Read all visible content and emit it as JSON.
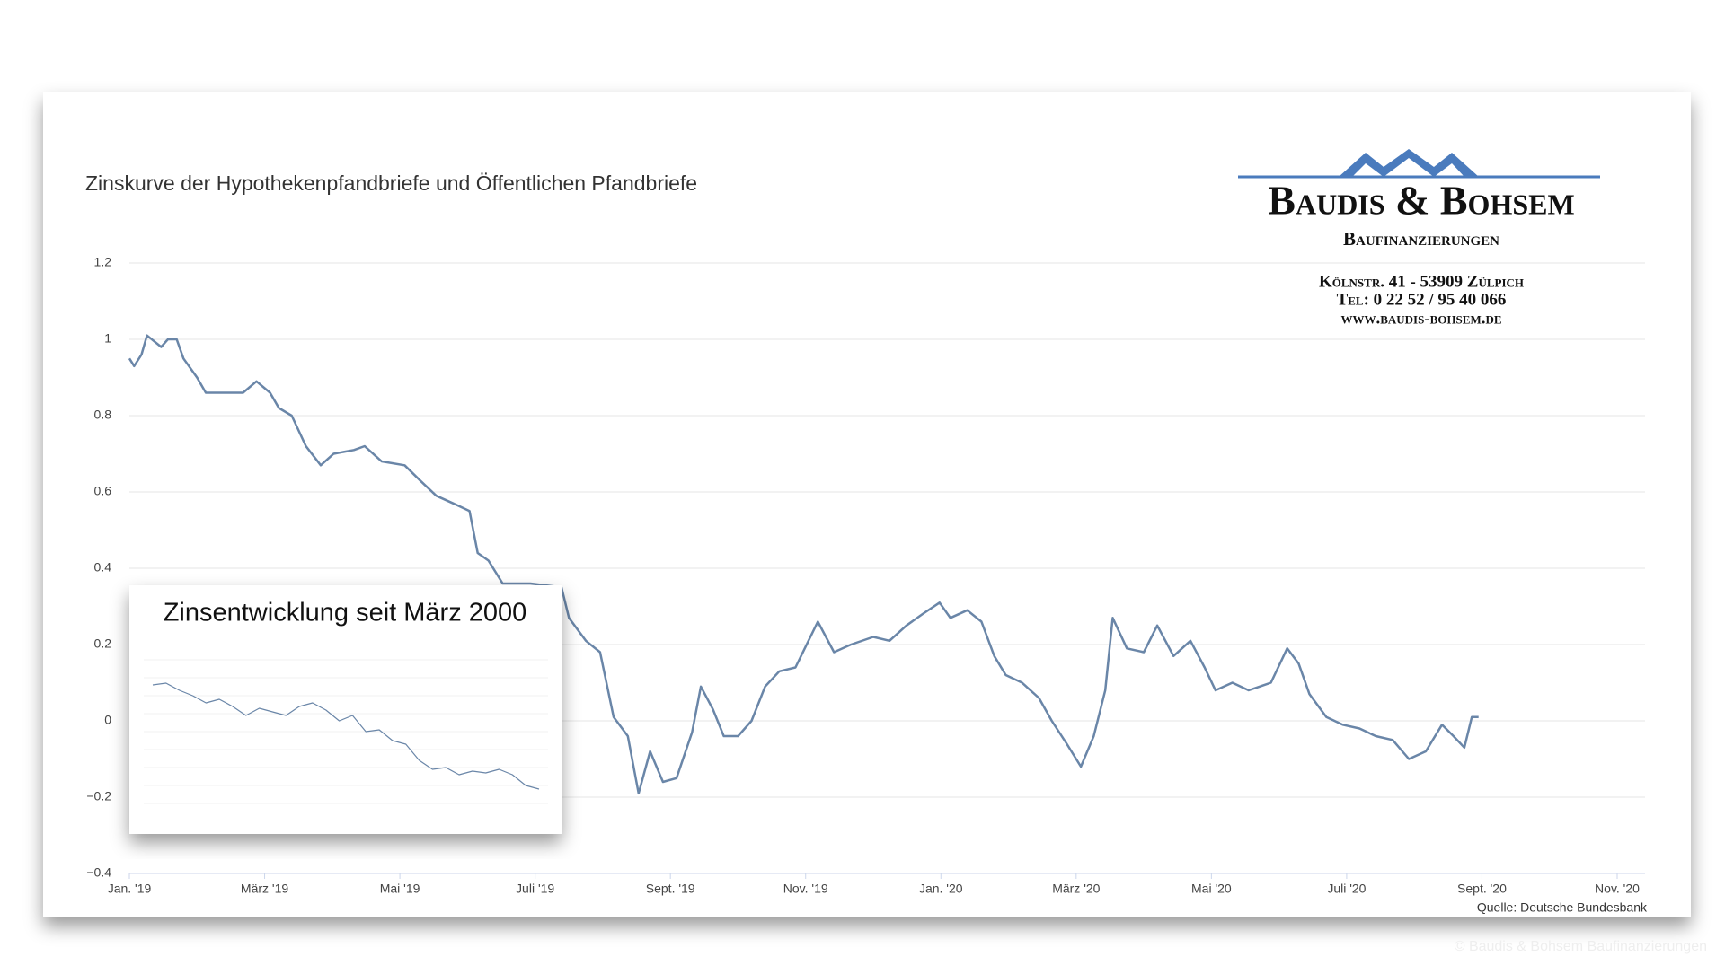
{
  "chart_data": [
    {
      "type": "line",
      "title": "Zinskurve der Hypothekenpfandbriefe und Öffentlichen Pfandbriefe",
      "source": "Quelle: Deutsche Bundesbank",
      "color": "#6a86a8",
      "grid": true,
      "x": [
        0,
        0.07,
        0.18,
        0.26,
        0.47,
        0.57,
        0.7,
        0.8,
        1.0,
        1.13,
        1.36,
        1.68,
        1.88,
        2.08,
        2.21,
        2.4,
        2.61,
        2.83,
        3.02,
        3.32,
        3.48,
        3.73,
        4.07,
        4.3,
        4.54,
        4.79,
        5.03,
        5.15,
        5.31,
        5.52,
        5.93,
        6.39,
        6.5,
        6.75,
        6.96,
        7.16,
        7.37,
        7.53,
        7.7,
        7.89,
        8.09,
        8.32,
        8.45,
        8.63,
        8.79,
        9.0,
        9.2,
        9.4,
        9.61,
        9.85,
        10.18,
        10.42,
        10.67,
        11.0,
        11.24,
        11.49,
        11.73,
        11.98,
        12.14,
        12.39,
        12.6,
        12.79,
        12.96,
        13.2,
        13.45,
        13.64,
        13.86,
        14.07,
        14.26,
        14.43,
        14.54,
        14.75,
        15.0,
        15.2,
        15.44,
        15.69,
        15.9,
        16.06,
        16.31,
        16.55,
        16.88,
        17.12,
        17.29,
        17.45,
        17.7,
        17.94,
        18.19,
        18.43,
        18.68,
        18.92,
        19.17,
        19.41,
        19.58,
        19.74,
        19.85,
        19.95
      ],
      "values": [
        0.95,
        0.93,
        0.96,
        1.01,
        0.98,
        1.0,
        1.0,
        0.95,
        0.9,
        0.86,
        0.86,
        0.86,
        0.89,
        0.86,
        0.82,
        0.8,
        0.72,
        0.67,
        0.7,
        0.71,
        0.72,
        0.68,
        0.67,
        0.63,
        0.59,
        0.57,
        0.55,
        0.44,
        0.42,
        0.36,
        0.36,
        0.35,
        0.27,
        0.21,
        0.18,
        0.01,
        -0.04,
        -0.19,
        -0.08,
        -0.16,
        -0.15,
        -0.03,
        0.09,
        0.03,
        -0.04,
        -0.04,
        0.0,
        0.09,
        0.13,
        0.14,
        0.26,
        0.18,
        0.2,
        0.22,
        0.21,
        0.25,
        0.28,
        0.31,
        0.27,
        0.29,
        0.26,
        0.17,
        0.12,
        0.1,
        0.06,
        0.0,
        -0.06,
        -0.12,
        -0.04,
        0.08,
        0.27,
        0.19,
        0.18,
        0.25,
        0.17,
        0.21,
        0.14,
        0.08,
        0.1,
        0.08,
        0.1,
        0.19,
        0.15,
        0.07,
        0.01,
        -0.01,
        -0.02,
        -0.04,
        -0.05,
        -0.1,
        -0.08,
        -0.01,
        -0.04,
        -0.07,
        0.01,
        0.01
      ],
      "xlim": [
        0,
        22
      ],
      "xticks": [
        {
          "value": 0,
          "label": "Jan. '19"
        },
        {
          "value": 2,
          "label": "März '19"
        },
        {
          "value": 4,
          "label": "Mai '19"
        },
        {
          "value": 6,
          "label": "Juli '19"
        },
        {
          "value": 8,
          "label": "Sept. '19"
        },
        {
          "value": 10,
          "label": "Nov. '19"
        },
        {
          "value": 12,
          "label": "Jan. '20"
        },
        {
          "value": 14,
          "label": "März '20"
        },
        {
          "value": 16,
          "label": "Mai '20"
        },
        {
          "value": 18,
          "label": "Juli '20"
        },
        {
          "value": 20,
          "label": "Sept. '20"
        },
        {
          "value": 22,
          "label": "Nov. '20"
        }
      ],
      "ylim": [
        -0.4,
        1.2
      ],
      "yticks": [
        {
          "value": -0.4,
          "label": "−0.4"
        },
        {
          "value": -0.2,
          "label": "−0.2"
        },
        0,
        0.2,
        0.4,
        0.6,
        0.8,
        1,
        1.2
      ]
    },
    {
      "type": "line",
      "title": "Zinsentwicklung seit März 2000",
      "color": "#6a86a8",
      "values": [
        5.6,
        5.7,
        5.3,
        5.0,
        4.6,
        4.8,
        4.4,
        3.9,
        4.3,
        4.1,
        3.9,
        4.4,
        4.6,
        4.2,
        3.6,
        3.9,
        3.0,
        3.1,
        2.5,
        2.3,
        1.4,
        0.9,
        1.0,
        0.6,
        0.8,
        0.7,
        0.9,
        0.6,
        0.0,
        -0.2
      ],
      "ylim": [
        -1,
        7
      ]
    }
  ],
  "logo": {
    "name": "Baudis & Bohsem",
    "subtitle": "Baufinanzierungen",
    "address": [
      "Kölnstr. 41 - 53909 Zülpich",
      "Tel: 0 22 52 / 95 40 066",
      "www.baudis-bohsem.de"
    ]
  },
  "copyright": "© Baudis & Bohsem Baufinanzierungen"
}
